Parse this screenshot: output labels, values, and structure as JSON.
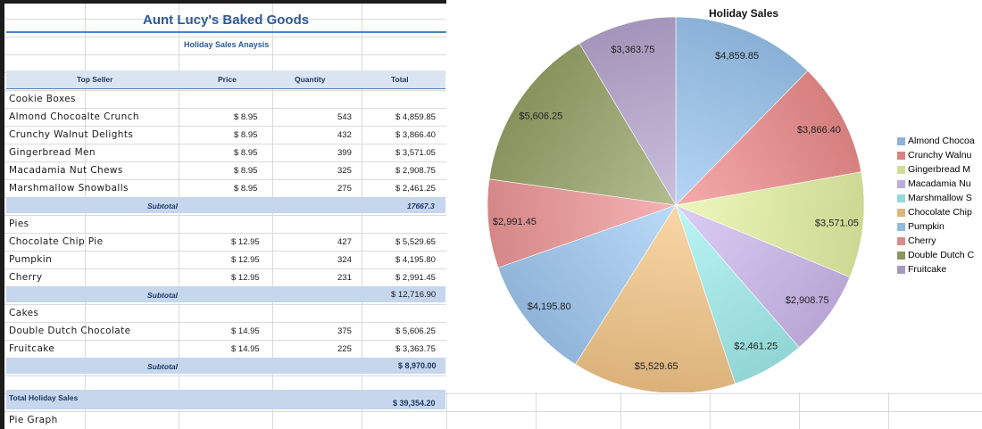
{
  "sheet": {
    "title": "Aunt Lucy's Baked Goods",
    "subtitle": "Holiday Sales Anaysis",
    "columns": [
      "Top Seller",
      "Price",
      "Quantity",
      "Total"
    ],
    "sections": [
      {
        "name": "Cookie Boxes",
        "rows": [
          {
            "item": "Almond Chocoalte Crunch",
            "price": "$ 8.95",
            "qty": "543",
            "total": "$ 4,859.85"
          },
          {
            "item": "Crunchy Walnut Delights",
            "price": "$ 8.95",
            "qty": "432",
            "total": "$ 3,866.40"
          },
          {
            "item": "Gingerbread Men",
            "price": "$ 8.95",
            "qty": "399",
            "total": "$ 3,571.05"
          },
          {
            "item": "Macadamia Nut Chews",
            "price": "$ 8.95",
            "qty": "325",
            "total": "$ 2,908.75"
          },
          {
            "item": "Marshmallow Snowballs",
            "price": "$ 8.95",
            "qty": "275",
            "total": "$ 2,461.25"
          }
        ],
        "subtotal_label": "Subtotal",
        "subtotal": "17667.3"
      },
      {
        "name": "Pies",
        "rows": [
          {
            "item": "Chocolate Chip Pie",
            "price": "$ 12.95",
            "qty": "427",
            "total": "$ 5,529.65"
          },
          {
            "item": "Pumpkin",
            "price": "$ 12.95",
            "qty": "324",
            "total": "$ 4,195.80"
          },
          {
            "item": "Cherry",
            "price": "$ 12.95",
            "qty": "231",
            "total": "$ 2,991.45"
          }
        ],
        "subtotal_label": "Subtotal",
        "subtotal": "$ 12,716.90"
      },
      {
        "name": "Cakes",
        "rows": [
          {
            "item": "Double Dutch Chocolate",
            "price": "$ 14.95",
            "qty": "375",
            "total": "$ 5,606.25"
          },
          {
            "item": "Fruitcake",
            "price": "$ 14.95",
            "qty": "225",
            "total": "$ 3,363.75"
          }
        ],
        "subtotal_label": "Subtotal",
        "subtotal": "$ 8,970.00"
      }
    ],
    "grand_total_label": "Total Holiday Sales",
    "grand_total": "$ 39,354.20",
    "footer_label": "Pie Graph"
  },
  "chart_data": {
    "type": "pie",
    "title": "Holiday Sales",
    "categories": [
      "Almond Chocoalte Crunch",
      "Crunchy Walnut Delights",
      "Gingerbread Men",
      "Macadamia Nut Chews",
      "Marshmallow Snowballs",
      "Chocolate Chip Pie",
      "Pumpkin",
      "Cherry",
      "Double Dutch Chocolate",
      "Fruitcake"
    ],
    "values": [
      4859.85,
      3866.4,
      3571.05,
      2908.75,
      2461.25,
      5529.65,
      4195.8,
      2991.45,
      5606.25,
      3363.75
    ],
    "data_labels": [
      "$4,859.85",
      "$3,866.40",
      "$3,571.05",
      "$2,908.75",
      "$2,461.25",
      "$5,529.65",
      "$4,195.80",
      "$2,991.45",
      "$5,606.25",
      "$3,363.75"
    ],
    "legend_labels": [
      "Almond Chocoa",
      "Crunchy Walnu",
      "Gingerbread M",
      "Macadamia Nu",
      "Marshmallow S",
      "Chocolate Chip",
      "Pumpkin",
      "Cherry",
      "Double Dutch C",
      "Fruitcake"
    ],
    "colors": [
      "#9cc8f2",
      "#f28f8f",
      "#e8f5a6",
      "#d2bdf2",
      "#a6f2f2",
      "#f8c98a",
      "#a3cdf5",
      "#f2999a",
      "#9aa66a",
      "#b9a9d2"
    ],
    "legend_position": "right"
  }
}
